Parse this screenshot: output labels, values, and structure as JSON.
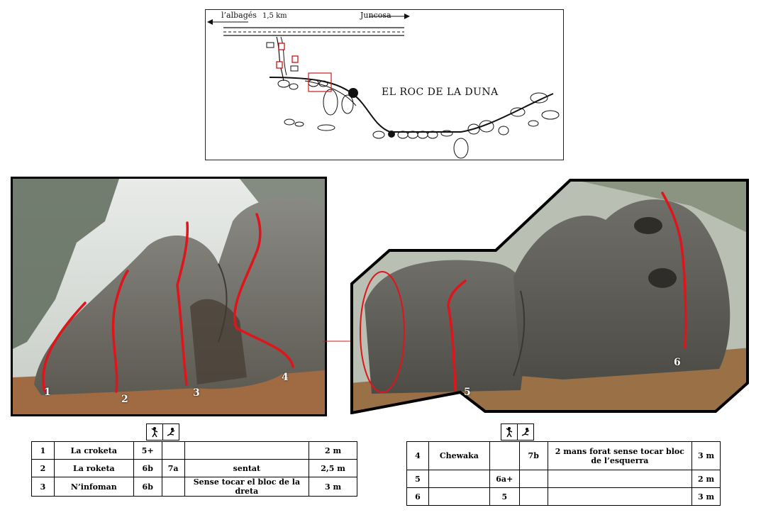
{
  "map": {
    "label_left": "l’albagés",
    "distance": "1,5 km",
    "label_right": "Juncosa",
    "parking_label": "P",
    "title": "EL ROC DE LA DUNA"
  },
  "route_labels": [
    "1",
    "2",
    "3",
    "4",
    "5",
    "6"
  ],
  "colors": {
    "route": "#e0141b",
    "box": "#cc1b1b"
  },
  "icons": {
    "standing": "standing-climber-icon",
    "sitting": "sit-start-icon"
  },
  "table_left": {
    "rows": [
      {
        "num": "1",
        "name": "La croketa",
        "grade": "5+",
        "grade_sit": "",
        "notes": "",
        "height": "2 m"
      },
      {
        "num": "2",
        "name": "La roketa",
        "grade": "6b",
        "grade_sit": "7a",
        "notes": "sentat",
        "height": "2,5 m"
      },
      {
        "num": "3",
        "name": "N’infoman",
        "grade": "6b",
        "grade_sit": "",
        "notes": "Sense tocar el bloc de la dreta",
        "height": "3 m"
      }
    ]
  },
  "table_right": {
    "rows": [
      {
        "num": "4",
        "name": "Chewaka",
        "grade": "",
        "grade_sit": "7b",
        "notes": "2 mans forat sense tocar bloc de l’esquerra",
        "height": "3 m"
      },
      {
        "num": "5",
        "name": "",
        "grade": "6a+",
        "grade_sit": "",
        "notes": "",
        "height": "2 m"
      },
      {
        "num": "6",
        "name": "",
        "grade": "5",
        "grade_sit": "",
        "notes": "",
        "height": "3 m"
      }
    ]
  }
}
